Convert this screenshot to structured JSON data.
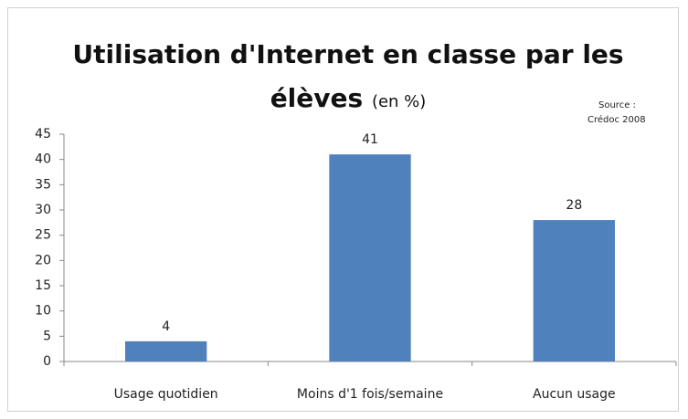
{
  "chart_data": {
    "type": "bar",
    "title": "Utilisation d'Internet en classe par les élèves",
    "subtitle": "(en %)",
    "source": [
      "Source :",
      "Crédoc 2008"
    ],
    "categories": [
      "Usage quotidien",
      "Moins d'1 fois/semaine",
      "Aucun usage"
    ],
    "values": [
      4,
      41,
      28
    ],
    "color": "#4f81bd",
    "ylim": [
      0,
      45
    ],
    "yticks": [
      0,
      5,
      10,
      15,
      20,
      25,
      30,
      35,
      40,
      45
    ],
    "grid": false
  }
}
